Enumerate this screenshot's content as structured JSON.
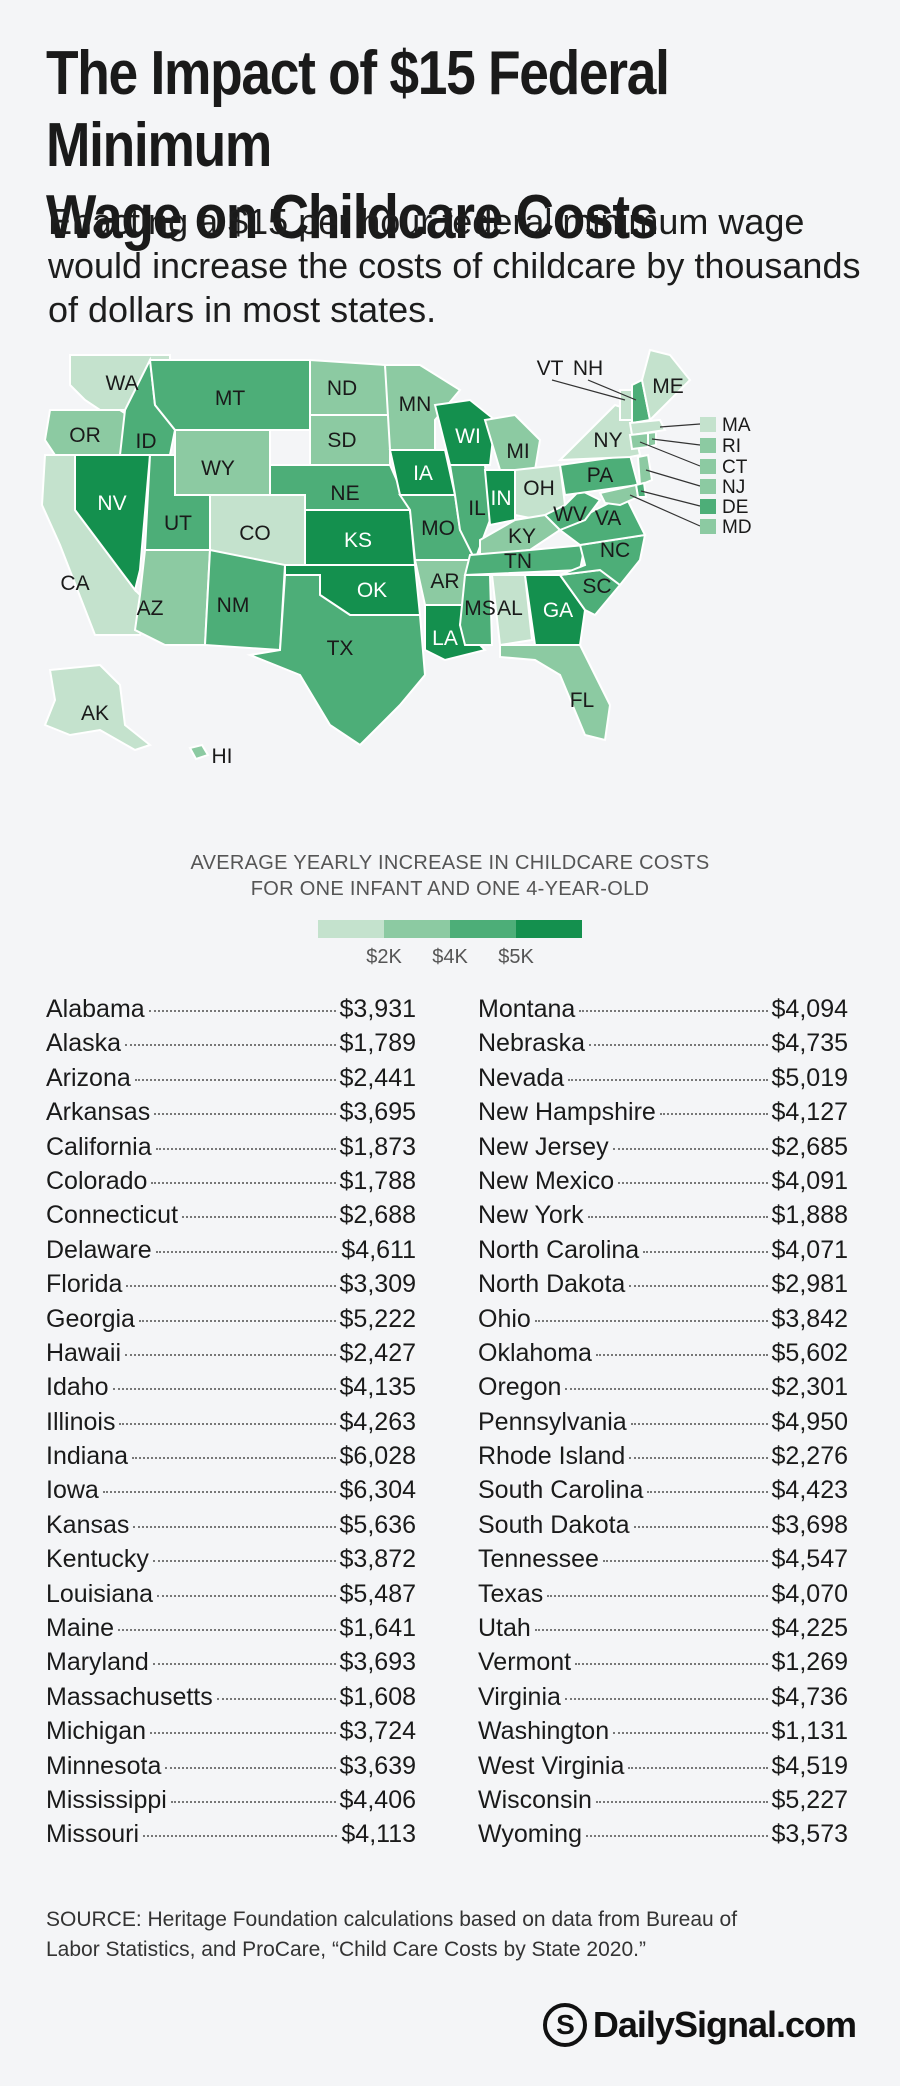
{
  "header": {
    "title_line1": "The Impact of $15 Federal Minimum",
    "title_line2": "Wage on Childcare Costs",
    "subtitle_line1": "Enacting a $15 per hour federal minimum wage",
    "subtitle_line2": "would increase the costs of childcare by thousands",
    "subtitle_line3": "of dollars in most states."
  },
  "legend": {
    "title_line1": "AVERAGE YEARLY INCREASE IN CHILDCARE COSTS",
    "title_line2": "FOR ONE INFANT AND ONE 4-YEAR-OLD",
    "ticks": [
      "$2K",
      "$4K",
      "$5K"
    ],
    "colors": [
      "#c4e2cd",
      "#8ccaa2",
      "#4dae78",
      "#14904e"
    ]
  },
  "map_labels": {
    "WA": "WA",
    "OR": "OR",
    "CA": "CA",
    "NV": "NV",
    "ID": "ID",
    "MT": "MT",
    "WY": "WY",
    "UT": "UT",
    "AZ": "AZ",
    "CO": "CO",
    "NM": "NM",
    "ND": "ND",
    "SD": "SD",
    "NE": "NE",
    "KS": "KS",
    "OK": "OK",
    "TX": "TX",
    "MN": "MN",
    "IA": "IA",
    "MO": "MO",
    "AR": "AR",
    "LA": "LA",
    "WI": "WI",
    "IL": "IL",
    "MI": "MI",
    "IN": "IN",
    "OH": "OH",
    "KY": "KY",
    "TN": "TN",
    "MS": "MS",
    "AL": "AL",
    "GA": "GA",
    "FL": "FL",
    "SC": "SC",
    "NC": "NC",
    "VA": "VA",
    "WV": "WV",
    "PA": "PA",
    "NY": "NY",
    "VT": "VT",
    "NH": "NH",
    "ME": "ME",
    "MA": "MA",
    "RI": "RI",
    "CT": "CT",
    "NJ": "NJ",
    "DE": "DE",
    "MD": "MD",
    "AK": "AK",
    "HI": "HI"
  },
  "table_left": [
    {
      "state": "Alabama",
      "value": "$3,931"
    },
    {
      "state": "Alaska",
      "value": "$1,789"
    },
    {
      "state": "Arizona",
      "value": "$2,441"
    },
    {
      "state": "Arkansas",
      "value": "$3,695"
    },
    {
      "state": "California",
      "value": "$1,873"
    },
    {
      "state": "Colorado",
      "value": "$1,788"
    },
    {
      "state": "Connecticut",
      "value": "$2,688"
    },
    {
      "state": "Delaware",
      "value": "$4,611"
    },
    {
      "state": "Florida",
      "value": "$3,309"
    },
    {
      "state": "Georgia",
      "value": "$5,222"
    },
    {
      "state": "Hawaii",
      "value": "$2,427"
    },
    {
      "state": "Idaho",
      "value": "$4,135"
    },
    {
      "state": "Illinois",
      "value": "$4,263"
    },
    {
      "state": "Indiana",
      "value": "$6,028"
    },
    {
      "state": "Iowa",
      "value": "$6,304"
    },
    {
      "state": "Kansas",
      "value": "$5,636"
    },
    {
      "state": "Kentucky",
      "value": "$3,872"
    },
    {
      "state": "Louisiana",
      "value": "$5,487"
    },
    {
      "state": "Maine",
      "value": "$1,641"
    },
    {
      "state": "Maryland",
      "value": "$3,693"
    },
    {
      "state": "Massachusetts",
      "value": "$1,608"
    },
    {
      "state": "Michigan",
      "value": "$3,724"
    },
    {
      "state": "Minnesota",
      "value": "$3,639"
    },
    {
      "state": "Mississippi",
      "value": "$4,406"
    },
    {
      "state": "Missouri",
      "value": "$4,113"
    }
  ],
  "table_right": [
    {
      "state": "Montana",
      "value": "$4,094"
    },
    {
      "state": "Nebraska",
      "value": "$4,735"
    },
    {
      "state": "Nevada",
      "value": "$5,019"
    },
    {
      "state": "New Hampshire",
      "value": "$4,127"
    },
    {
      "state": "New Jersey",
      "value": "$2,685"
    },
    {
      "state": "New Mexico",
      "value": "$4,091"
    },
    {
      "state": "New York",
      "value": "$1,888"
    },
    {
      "state": "North Carolina",
      "value": "$4,071"
    },
    {
      "state": "North Dakota",
      "value": "$2,981"
    },
    {
      "state": "Ohio",
      "value": "$3,842"
    },
    {
      "state": "Oklahoma",
      "value": "$5,602"
    },
    {
      "state": "Oregon",
      "value": "$2,301"
    },
    {
      "state": "Pennsylvania",
      "value": "$4,950"
    },
    {
      "state": "Rhode Island",
      "value": "$2,276"
    },
    {
      "state": "South Carolina",
      "value": "$4,423"
    },
    {
      "state": "South Dakota",
      "value": "$3,698"
    },
    {
      "state": "Tennessee",
      "value": "$4,547"
    },
    {
      "state": "Texas",
      "value": "$4,070"
    },
    {
      "state": "Utah",
      "value": "$4,225"
    },
    {
      "state": "Vermont",
      "value": "$1,269"
    },
    {
      "state": "Virginia",
      "value": "$4,736"
    },
    {
      "state": "Washington",
      "value": "$1,131"
    },
    {
      "state": "West Virginia",
      "value": "$4,519"
    },
    {
      "state": "Wisconsin",
      "value": "$5,227"
    },
    {
      "state": "Wyoming",
      "value": "$3,573"
    }
  ],
  "footer": {
    "source_line1": "SOURCE: Heritage Foundation calculations based on data from Bureau of",
    "source_line2": "Labor Statistics, and ProCare, “Child Care Costs by State 2020.”",
    "logo_mark": "S",
    "logo_text": "DailySignal.com"
  }
}
